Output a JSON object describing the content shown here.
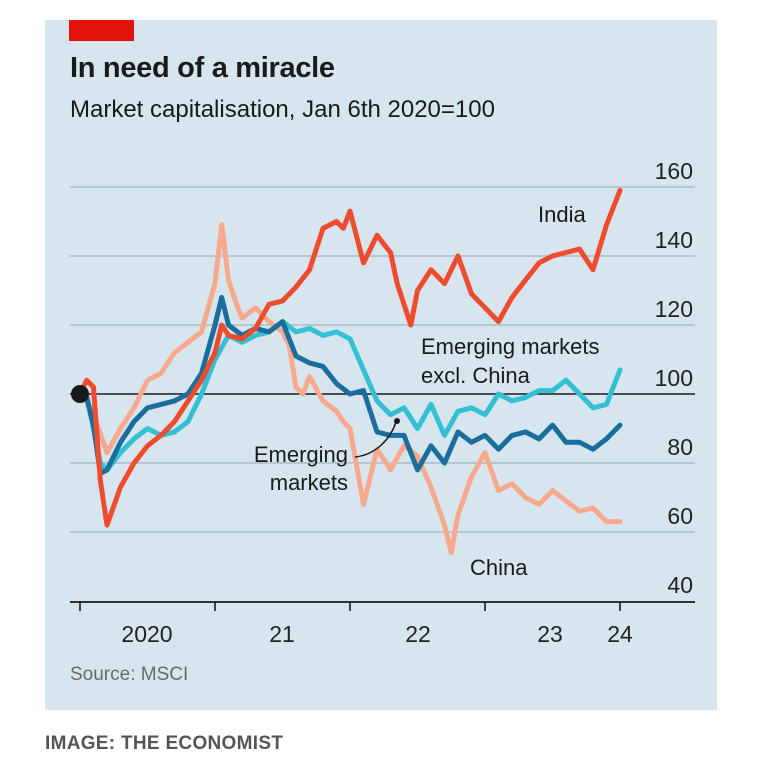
{
  "header": {
    "title": "In need of a miracle",
    "subtitle": "Market capitalisation, Jan 6th 2020=100"
  },
  "footer": {
    "source": "Source: MSCI",
    "credit": "IMAGE: THE ECONOMIST"
  },
  "colors": {
    "background": "#d7e6ee",
    "brand_red": "#e3120b",
    "india": "#ef4b2f",
    "china": "#f7a98e",
    "emerging_markets": "#1a6e9e",
    "emerging_excl_china": "#33c0d3",
    "gridline": "#a9bcc6",
    "baseline": "#1a1a1a"
  },
  "chart_data": {
    "type": "line",
    "title": "In need of a miracle",
    "subtitle": "Market capitalisation, Jan 6th 2020=100",
    "xlabel": "",
    "ylabel": "",
    "ylim": [
      40,
      160
    ],
    "xlim": [
      2020.0,
      2024.1
    ],
    "yticks": [
      40,
      60,
      80,
      100,
      120,
      140,
      160
    ],
    "ytick_labels": [
      "40",
      "60",
      "80",
      "100",
      "120",
      "140",
      "160"
    ],
    "xticks": [
      2020.0,
      2021.0,
      2022.0,
      2023.0,
      2024.0
    ],
    "xtick_labels": [
      "2020",
      "21",
      "22",
      "23",
      "24"
    ],
    "baseline": 100,
    "grid": true,
    "legend": "inline-labels",
    "annotations": [
      {
        "text": "India",
        "series": "India"
      },
      {
        "text": "Emerging markets excl. China",
        "series": "Emerging markets excl. China"
      },
      {
        "text": "Emerging markets",
        "series": "Emerging markets"
      },
      {
        "text": "China",
        "series": "China"
      }
    ],
    "start_marker": {
      "x": 2020.0,
      "y": 100
    },
    "series": [
      {
        "name": "China",
        "x": [
          2020.0,
          2020.05,
          2020.1,
          2020.2,
          2020.3,
          2020.4,
          2020.5,
          2020.6,
          2020.7,
          2020.8,
          2020.9,
          2021.0,
          2021.05,
          2021.1,
          2021.15,
          2021.2,
          2021.3,
          2021.4,
          2021.5,
          2021.55,
          2021.6,
          2021.65,
          2021.7,
          2021.8,
          2021.9,
          2021.95,
          2022.0,
          2022.1,
          2022.2,
          2022.3,
          2022.4,
          2022.5,
          2022.6,
          2022.7,
          2022.75,
          2022.8,
          2022.9,
          2023.0,
          2023.1,
          2023.2,
          2023.3,
          2023.4,
          2023.5,
          2023.6,
          2023.7,
          2023.8,
          2023.9,
          2024.0
        ],
        "values": [
          100,
          98,
          94,
          83,
          90,
          96,
          104,
          106,
          112,
          115,
          118,
          132,
          149,
          133,
          127,
          122,
          125,
          121,
          118,
          114,
          102,
          100,
          105,
          98,
          95,
          92,
          90,
          68,
          84,
          78,
          85,
          82,
          73,
          62,
          54,
          65,
          76,
          83,
          72,
          74,
          70,
          68,
          72,
          69,
          66,
          67,
          63,
          63
        ]
      },
      {
        "name": "Emerging markets excl. China",
        "x": [
          2020.0,
          2020.05,
          2020.1,
          2020.15,
          2020.2,
          2020.3,
          2020.4,
          2020.5,
          2020.6,
          2020.7,
          2020.8,
          2020.9,
          2021.0,
          2021.1,
          2021.2,
          2021.3,
          2021.4,
          2021.5,
          2021.6,
          2021.7,
          2021.8,
          2021.9,
          2022.0,
          2022.1,
          2022.2,
          2022.3,
          2022.4,
          2022.5,
          2022.6,
          2022.7,
          2022.8,
          2022.9,
          2023.0,
          2023.1,
          2023.2,
          2023.3,
          2023.4,
          2023.5,
          2023.6,
          2023.7,
          2023.8,
          2023.9,
          2024.0
        ],
        "values": [
          100,
          99,
          90,
          80,
          78,
          83,
          87,
          90,
          88,
          89,
          92,
          100,
          110,
          117,
          115,
          117,
          118,
          121,
          118,
          119,
          117,
          118,
          116,
          107,
          98,
          94,
          96,
          90,
          97,
          88,
          95,
          96,
          94,
          100,
          98,
          99,
          101,
          101,
          104,
          100,
          96,
          97,
          107
        ]
      },
      {
        "name": "Emerging markets",
        "x": [
          2020.0,
          2020.05,
          2020.1,
          2020.15,
          2020.2,
          2020.3,
          2020.4,
          2020.5,
          2020.6,
          2020.7,
          2020.8,
          2020.9,
          2021.0,
          2021.05,
          2021.1,
          2021.2,
          2021.3,
          2021.4,
          2021.5,
          2021.6,
          2021.7,
          2021.8,
          2021.9,
          2022.0,
          2022.1,
          2022.2,
          2022.3,
          2022.4,
          2022.5,
          2022.6,
          2022.7,
          2022.8,
          2022.9,
          2023.0,
          2023.1,
          2023.2,
          2023.3,
          2023.4,
          2023.5,
          2023.6,
          2023.7,
          2023.8,
          2023.9,
          2024.0
        ],
        "values": [
          100,
          99,
          91,
          77,
          78,
          86,
          92,
          96,
          97,
          98,
          100,
          106,
          120,
          128,
          120,
          117,
          119,
          118,
          121,
          111,
          109,
          108,
          103,
          100,
          101,
          89,
          88,
          88,
          78,
          85,
          80,
          89,
          86,
          88,
          84,
          88,
          89,
          87,
          91,
          86,
          86,
          84,
          87,
          91
        ]
      },
      {
        "name": "India",
        "x": [
          2020.0,
          2020.05,
          2020.1,
          2020.15,
          2020.2,
          2020.3,
          2020.4,
          2020.5,
          2020.6,
          2020.7,
          2020.8,
          2020.9,
          2021.0,
          2021.05,
          2021.1,
          2021.2,
          2021.3,
          2021.4,
          2021.5,
          2021.6,
          2021.7,
          2021.8,
          2021.9,
          2021.95,
          2022.0,
          2022.1,
          2022.2,
          2022.3,
          2022.35,
          2022.45,
          2022.5,
          2022.6,
          2022.7,
          2022.8,
          2022.9,
          2023.0,
          2023.1,
          2023.2,
          2023.3,
          2023.4,
          2023.5,
          2023.6,
          2023.7,
          2023.8,
          2023.9,
          2024.0
        ],
        "values": [
          100,
          104,
          102,
          75,
          62,
          73,
          80,
          85,
          88,
          92,
          98,
          104,
          112,
          120,
          117,
          116,
          119,
          126,
          127,
          131,
          136,
          148,
          150,
          148,
          153,
          138,
          146,
          141,
          132,
          120,
          130,
          136,
          132,
          140,
          129,
          125,
          121,
          128,
          133,
          138,
          140,
          141,
          142,
          136,
          149,
          159
        ]
      }
    ]
  }
}
